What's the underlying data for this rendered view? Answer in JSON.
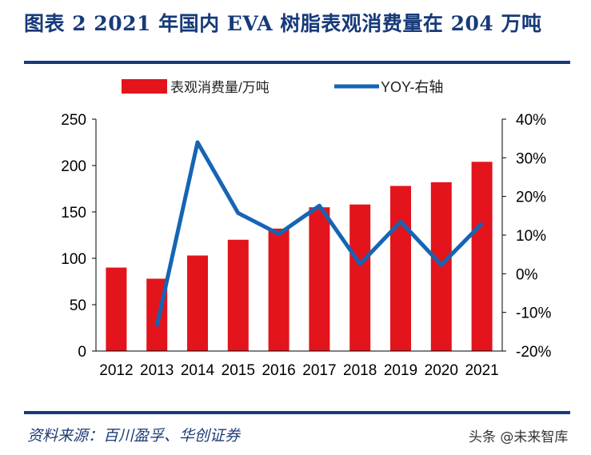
{
  "header": {
    "title": "图表 2   2021 年国内 EVA 树脂表观消费量在 204 万吨"
  },
  "footer": {
    "source": "资料来源：百川盈孚、华创证券",
    "watermark": "头条 @未来智库"
  },
  "colors": {
    "bar": "#e3141b",
    "line": "#1565b4",
    "title": "#173a7a"
  },
  "chart_data": {
    "type": "bar+line",
    "categories": [
      "2012",
      "2013",
      "2014",
      "2015",
      "2016",
      "2017",
      "2018",
      "2019",
      "2020",
      "2021"
    ],
    "series": [
      {
        "name": "表观消费量/万吨",
        "type": "bar",
        "axis": "left",
        "values": [
          90,
          78,
          103,
          120,
          132,
          155,
          158,
          178,
          182,
          204
        ]
      },
      {
        "name": "YOY-右轴",
        "type": "line",
        "axis": "right",
        "values": [
          null,
          -13.5,
          34,
          15.7,
          10.3,
          17.6,
          2.5,
          13.5,
          2.3,
          13
        ]
      }
    ],
    "left_axis": {
      "ylim": [
        0,
        250
      ],
      "ticks": [
        "0",
        "50",
        "100",
        "150",
        "200",
        "250"
      ]
    },
    "right_axis": {
      "ylim": [
        -20,
        40
      ],
      "ticks": [
        "-20%",
        "-10%",
        "0%",
        "10%",
        "20%",
        "30%",
        "40%"
      ]
    },
    "legend": "top",
    "grid": false
  }
}
